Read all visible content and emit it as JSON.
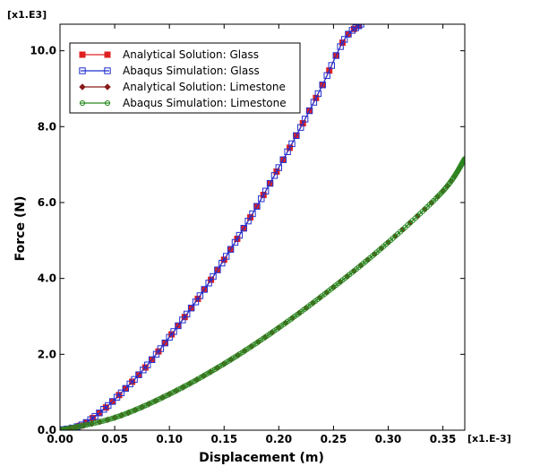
{
  "chart_data": {
    "type": "line",
    "xlabel": "Displacement (m)",
    "ylabel": "Force (N)",
    "x_multiplier": "[x1.E-3]",
    "y_multiplier": "[x1.E3]",
    "xlim": [
      0,
      0.37
    ],
    "ylim": [
      0,
      10.7
    ],
    "xticks": [
      "0.00",
      "0.05",
      "0.10",
      "0.15",
      "0.20",
      "0.25",
      "0.30",
      "0.35"
    ],
    "xtick_values": [
      0,
      0.05,
      0.1,
      0.15,
      0.2,
      0.25,
      0.3,
      0.35
    ],
    "yticks": [
      "0.0",
      "2.0",
      "4.0",
      "6.0",
      "8.0",
      "10.0"
    ],
    "ytick_values": [
      0,
      2,
      4,
      6,
      8,
      10
    ],
    "legend_position": "top-left",
    "grid": false,
    "series": [
      {
        "name": "Analytical Solution: Glass",
        "color": "#e02020",
        "marker": "filled-square",
        "x": [
          0,
          0.02,
          0.04,
          0.06,
          0.08,
          0.1,
          0.12,
          0.14,
          0.16,
          0.18,
          0.2,
          0.22,
          0.24,
          0.26,
          0.275
        ],
        "y": [
          0,
          0.14,
          0.55,
          1.1,
          1.72,
          2.45,
          3.22,
          4.05,
          4.95,
          5.9,
          6.92,
          7.98,
          9.1,
          10.3,
          10.7
        ]
      },
      {
        "name": "Abaqus Simulation: Glass",
        "color": "#1f2fd0",
        "marker": "open-square",
        "x": [
          0,
          0.02,
          0.04,
          0.06,
          0.08,
          0.1,
          0.12,
          0.14,
          0.16,
          0.18,
          0.2,
          0.22,
          0.24,
          0.26,
          0.275
        ],
        "y": [
          0,
          0.14,
          0.55,
          1.1,
          1.72,
          2.45,
          3.22,
          4.05,
          4.95,
          5.9,
          6.92,
          7.98,
          9.1,
          10.3,
          10.7
        ]
      },
      {
        "name": "Analytical Solution: Limestone",
        "color": "#8b1a1a",
        "marker": "filled-diamond",
        "x": [
          0,
          0.05,
          0.1,
          0.15,
          0.2,
          0.25,
          0.3,
          0.35,
          0.37
        ],
        "y": [
          0,
          0.33,
          0.95,
          1.75,
          2.7,
          3.77,
          4.95,
          6.3,
          7.15
        ]
      },
      {
        "name": "Abaqus Simulation: Limestone",
        "color": "#2a8a22",
        "marker": "open-circle",
        "x": [
          0,
          0.05,
          0.1,
          0.15,
          0.2,
          0.25,
          0.3,
          0.35,
          0.37
        ],
        "y": [
          0,
          0.33,
          0.95,
          1.75,
          2.7,
          3.77,
          4.95,
          6.3,
          7.15
        ]
      }
    ]
  }
}
